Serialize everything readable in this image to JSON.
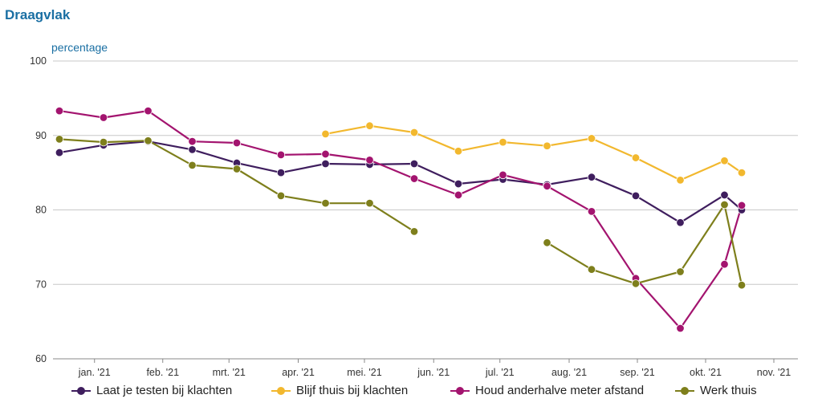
{
  "title": "Draagvlak",
  "chart_data": {
    "type": "line",
    "ylabel": "percentage",
    "ylim": [
      60,
      100
    ],
    "yticks": [
      60,
      70,
      80,
      90,
      100
    ],
    "month_labels": [
      "jan. '21",
      "feb. '21",
      "mrt. '21",
      "apr. '21",
      "mei. '21",
      "jun. '21",
      "jul. '21",
      "aug. '21",
      "sep. '21",
      "okt. '21",
      "nov. '21"
    ],
    "x": [
      "2021-01-01",
      "2021-01-15",
      "2021-02-01",
      "2021-02-15",
      "2021-03-01",
      "2021-03-15",
      "2021-04-01",
      "2021-04-15",
      "2021-05-01",
      "2021-05-15",
      "2021-06-01",
      "2021-06-15",
      "2021-07-01",
      "2021-07-15",
      "2021-08-01",
      "2021-08-15",
      "2021-09-01",
      "2021-09-15",
      "2021-10-01",
      "2021-10-15",
      "2021-11-01",
      "2021-11-15"
    ],
    "x_index": [
      0,
      1,
      2,
      3,
      4,
      5,
      6,
      7,
      8,
      9,
      10,
      11,
      12,
      13,
      14,
      15,
      16,
      17,
      18,
      19,
      20,
      21
    ],
    "grid": true,
    "legend_position": "bottom",
    "series": [
      {
        "name": "Laat je testen bij klachten",
        "color": "#3f1e5e",
        "points": [
          [
            0,
            87.7
          ],
          [
            1.1,
            88.7
          ],
          [
            2.21,
            89.2
          ],
          [
            3.31,
            88.1
          ],
          [
            4.42,
            86.3
          ],
          [
            5.52,
            85.0
          ],
          [
            6.63,
            86.2
          ],
          [
            7.73,
            86.1
          ],
          [
            8.84,
            86.2
          ],
          [
            9.94,
            83.5
          ],
          [
            11.05,
            84.1
          ],
          [
            12.15,
            83.4
          ],
          [
            13.26,
            84.4
          ],
          [
            14.36,
            81.9
          ],
          [
            15.47,
            78.3
          ],
          [
            16.57,
            82.0
          ],
          [
            17,
            80.0
          ]
        ]
      },
      {
        "name": "Blijf thuis bij klachten",
        "color": "#f2b82e",
        "points": [
          [
            6.63,
            90.2
          ],
          [
            7.73,
            91.3
          ],
          [
            8.84,
            90.4
          ],
          [
            9.94,
            87.9
          ],
          [
            11.05,
            89.1
          ],
          [
            12.15,
            88.6
          ],
          [
            13.26,
            89.6
          ],
          [
            14.36,
            87.0
          ],
          [
            15.47,
            84.0
          ],
          [
            16.57,
            86.6
          ],
          [
            17,
            85.0
          ]
        ]
      },
      {
        "name": "Houd anderhalve meter afstand",
        "color": "#a3146f",
        "points": [
          [
            0,
            93.3
          ],
          [
            1.1,
            92.4
          ],
          [
            2.21,
            93.3
          ],
          [
            3.31,
            89.2
          ],
          [
            4.42,
            89.0
          ],
          [
            5.52,
            87.4
          ],
          [
            6.63,
            87.5
          ],
          [
            7.73,
            86.7
          ],
          [
            8.84,
            84.2
          ],
          [
            9.94,
            82.0
          ],
          [
            11.05,
            84.7
          ],
          [
            12.15,
            83.2
          ],
          [
            13.26,
            79.8
          ],
          [
            14.36,
            70.8
          ],
          [
            15.47,
            64.1
          ],
          [
            16.57,
            72.7
          ],
          [
            17,
            80.6
          ]
        ]
      },
      {
        "name": "Werk thuis",
        "color": "#7e7f1c",
        "points": [
          [
            0,
            89.5
          ],
          [
            1.1,
            89.1
          ],
          [
            2.21,
            89.3
          ],
          [
            3.31,
            86.0
          ],
          [
            4.42,
            85.5
          ],
          [
            5.52,
            81.9
          ],
          [
            6.63,
            80.9
          ],
          [
            7.73,
            80.9
          ],
          [
            8.84,
            77.1
          ],
          null,
          [
            12.15,
            75.6
          ],
          [
            13.26,
            72.0
          ],
          [
            14.36,
            70.1
          ],
          [
            15.47,
            71.7
          ],
          [
            16.57,
            80.7
          ],
          [
            17,
            69.9
          ]
        ]
      }
    ]
  }
}
